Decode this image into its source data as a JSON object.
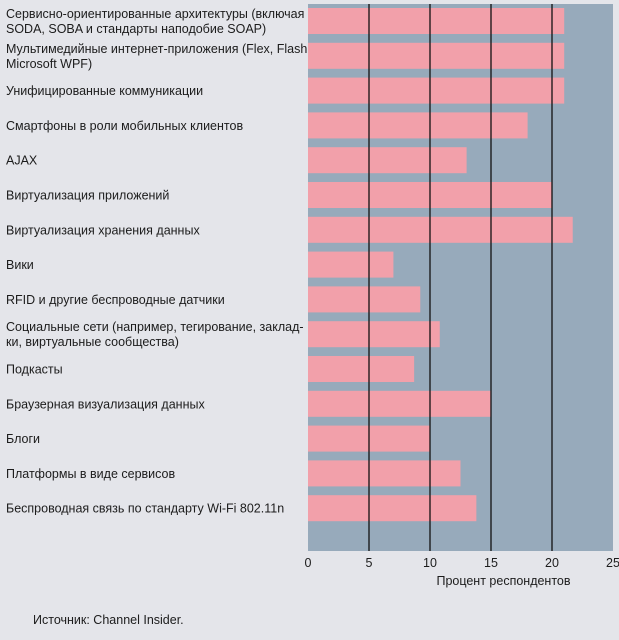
{
  "chart_data": {
    "type": "bar",
    "orientation": "horizontal",
    "categories": [
      [
        "Сервисно-ориентированные архитектуры (включая",
        "SODA, SOBA и стандарты наподобие SOAP)"
      ],
      [
        "Мультимедийные интернет-приложения (Flex, Flash,",
        "Microsoft WPF)"
      ],
      [
        "Унифицированные коммуникации"
      ],
      [
        "Смартфоны в роли мобильных клиентов"
      ],
      [
        "AJAX"
      ],
      [
        "Виртуализация приложений"
      ],
      [
        "Виртуализация хранения данных"
      ],
      [
        "Вики"
      ],
      [
        "RFID и другие беспроводные датчики"
      ],
      [
        "Социальные сети (например, тегирование, заклад-",
        "ки, виртуальные сообщества)"
      ],
      [
        "Подкасты"
      ],
      [
        "Браузерная визуализация данных"
      ],
      [
        "Блоги"
      ],
      [
        "Платформы в виде сервисов"
      ],
      [
        "Беспроводная связь по стандарту Wi-Fi 802.11n"
      ]
    ],
    "values": [
      21,
      21,
      21,
      18,
      13,
      20,
      21.7,
      7,
      9.2,
      10.8,
      8.7,
      15,
      10,
      12.5,
      13.8
    ],
    "xlabel": "Процент респондентов",
    "xlim": [
      0,
      25
    ],
    "xticks": [
      0,
      5,
      10,
      15,
      20,
      25
    ],
    "grid": "vertical",
    "colors": {
      "bar": "#f2a0aa",
      "plot_background": "#97aabb",
      "grid": "#111111"
    }
  },
  "source": "Источник: Channel Insider."
}
